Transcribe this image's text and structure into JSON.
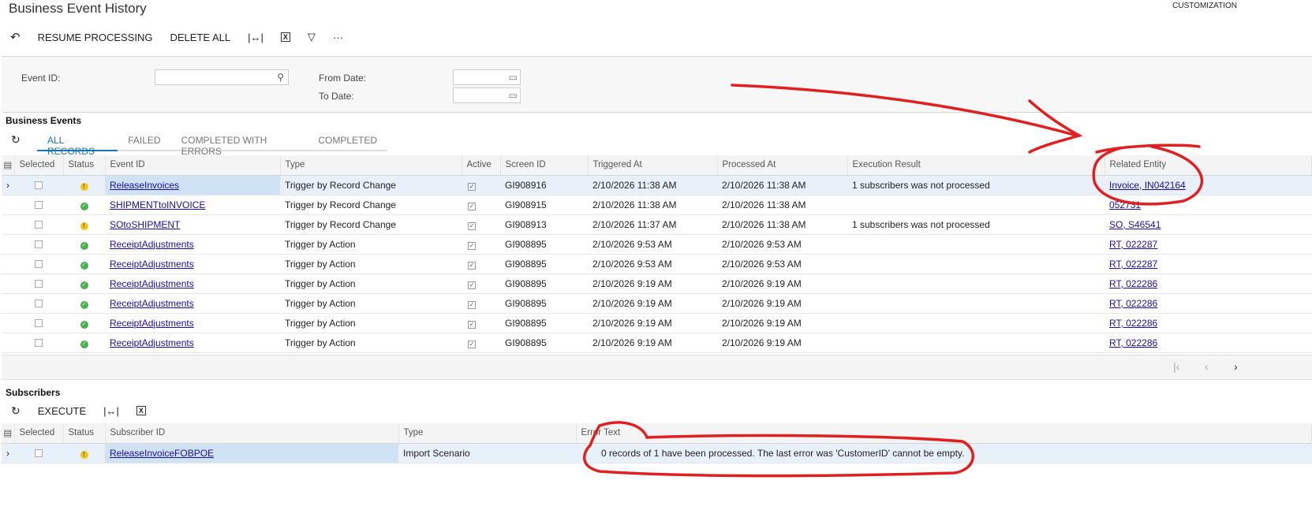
{
  "header": {
    "title": "Business Event History",
    "customization": "CUSTOMIZATION"
  },
  "toolbar": {
    "undo_icon": "undo-icon",
    "resume": "RESUME PROCESSING",
    "delete_all": "DELETE ALL",
    "fit_icon": "fit-columns-icon",
    "excel_icon": "excel-export-icon",
    "filter_icon": "filter-icon",
    "more": "···"
  },
  "filter": {
    "event_id_label": "Event ID:",
    "event_id_value": "",
    "from_date_label": "From Date:",
    "from_date_value": "",
    "to_date_label": "To Date:",
    "to_date_value": ""
  },
  "events": {
    "section_title": "Business Events",
    "tabs": [
      "ALL RECORDS",
      "FAILED",
      "COMPLETED WITH ERRORS",
      "COMPLETED"
    ],
    "active_tab": "ALL RECORDS",
    "columns": [
      "Selected",
      "Status",
      "Event ID",
      "Type",
      "Active",
      "Screen ID",
      "Triggered At",
      "Processed At",
      "Execution Result",
      "Related Entity"
    ],
    "rows": [
      {
        "selected": false,
        "status": "warning",
        "event_id": "ReleaseInvoices",
        "type": "Trigger by Record Change",
        "active": true,
        "screen_id": "GI908916",
        "triggered": "2/10/2026 11:38 AM",
        "processed": "2/10/2026 11:38 AM",
        "result": "1 subscribers was not processed",
        "entity": "Invoice, IN042164"
      },
      {
        "selected": false,
        "status": "success",
        "event_id": "SHIPMENTtoINVOICE",
        "type": "Trigger by Record Change",
        "active": true,
        "screen_id": "GI908915",
        "triggered": "2/10/2026 11:38 AM",
        "processed": "2/10/2026 11:38 AM",
        "result": "",
        "entity": "052731"
      },
      {
        "selected": false,
        "status": "warning",
        "event_id": "SOtoSHIPMENT",
        "type": "Trigger by Record Change",
        "active": true,
        "screen_id": "GI908913",
        "triggered": "2/10/2026 11:37 AM",
        "processed": "2/10/2026 11:38 AM",
        "result": "1 subscribers was not processed",
        "entity": "SO, S46541"
      },
      {
        "selected": false,
        "status": "success",
        "event_id": "ReceiptAdjustments",
        "type": "Trigger by Action",
        "active": true,
        "screen_id": "GI908895",
        "triggered": "2/10/2026 9:53 AM",
        "processed": "2/10/2026 9:53 AM",
        "result": "",
        "entity": "RT, 022287"
      },
      {
        "selected": false,
        "status": "success",
        "event_id": "ReceiptAdjustments",
        "type": "Trigger by Action",
        "active": true,
        "screen_id": "GI908895",
        "triggered": "2/10/2026 9:53 AM",
        "processed": "2/10/2026 9:53 AM",
        "result": "",
        "entity": "RT, 022287"
      },
      {
        "selected": false,
        "status": "success",
        "event_id": "ReceiptAdjustments",
        "type": "Trigger by Action",
        "active": true,
        "screen_id": "GI908895",
        "triggered": "2/10/2026 9:19 AM",
        "processed": "2/10/2026 9:19 AM",
        "result": "",
        "entity": "RT, 022286"
      },
      {
        "selected": false,
        "status": "success",
        "event_id": "ReceiptAdjustments",
        "type": "Trigger by Action",
        "active": true,
        "screen_id": "GI908895",
        "triggered": "2/10/2026 9:19 AM",
        "processed": "2/10/2026 9:19 AM",
        "result": "",
        "entity": "RT, 022286"
      },
      {
        "selected": false,
        "status": "success",
        "event_id": "ReceiptAdjustments",
        "type": "Trigger by Action",
        "active": true,
        "screen_id": "GI908895",
        "triggered": "2/10/2026 9:19 AM",
        "processed": "2/10/2026 9:19 AM",
        "result": "",
        "entity": "RT, 022286"
      },
      {
        "selected": false,
        "status": "success",
        "event_id": "ReceiptAdjustments",
        "type": "Trigger by Action",
        "active": true,
        "screen_id": "GI908895",
        "triggered": "2/10/2026 9:19 AM",
        "processed": "2/10/2026 9:19 AM",
        "result": "",
        "entity": "RT, 022286"
      }
    ]
  },
  "subscribers": {
    "section_title": "Subscribers",
    "execute": "EXECUTE",
    "columns": [
      "Selected",
      "Status",
      "Subscriber ID",
      "Type",
      "Error Text"
    ],
    "rows": [
      {
        "selected": false,
        "status": "warning",
        "subscriber_id": "ReleaseInvoiceFOBPOE",
        "type": "Import Scenario",
        "error": "0 records of 1 have been processed. The last error was 'CustomerID' cannot be empty."
      }
    ]
  },
  "annotation_color": "#e02020"
}
